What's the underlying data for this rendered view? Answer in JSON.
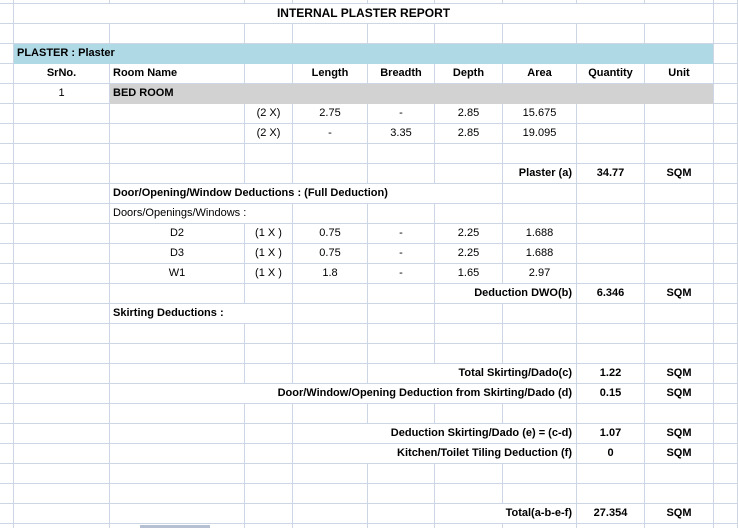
{
  "title": "INTERNAL PLASTER REPORT",
  "section_header": "PLASTER : Plaster",
  "columns": {
    "sr_no": "SrNo.",
    "room_name": "Room Name",
    "length": "Length",
    "breadth": "Breadth",
    "depth": "Depth",
    "area": "Area",
    "quantity": "Quantity",
    "unit": "Unit"
  },
  "room": {
    "sr_no": "1",
    "name": "BED ROOM"
  },
  "measure_rows": [
    {
      "mult": "(2 X)",
      "length": "2.75",
      "breadth": "-",
      "depth": "2.85",
      "area": "15.675"
    },
    {
      "mult": "(2 X)",
      "length": "-",
      "breadth": "3.35",
      "depth": "2.85",
      "area": "19.095"
    }
  ],
  "plaster_total": {
    "label": "Plaster (a)",
    "quantity": "34.77",
    "unit": "SQM"
  },
  "dwo_section": {
    "header": "Door/Opening/Window Deductions : (Full Deduction)",
    "subheader": "Doors/Openings/Windows :",
    "rows": [
      {
        "name": "D2",
        "mult": "(1 X )",
        "length": "0.75",
        "breadth": "-",
        "depth": "2.25",
        "area": "1.688"
      },
      {
        "name": "D3",
        "mult": "(1 X )",
        "length": "0.75",
        "breadth": "-",
        "depth": "2.25",
        "area": "1.688"
      },
      {
        "name": "W1",
        "mult": "(1 X )",
        "length": "1.8",
        "breadth": "-",
        "depth": "1.65",
        "area": "2.97"
      }
    ],
    "total": {
      "label": "Deduction DWO(b)",
      "quantity": "6.346",
      "unit": "SQM"
    }
  },
  "skirting_section": {
    "header": "Skirting Deductions :",
    "total_c": {
      "label": "Total Skirting/Dado(c)",
      "quantity": "1.22",
      "unit": "SQM"
    },
    "total_d": {
      "label": "Door/Window/Opening Deduction from Skirting/Dado (d)",
      "quantity": "0.15",
      "unit": "SQM"
    }
  },
  "final_deductions": {
    "row_e": {
      "label": "Deduction Skirting/Dado (e) = (c-d)",
      "quantity": "1.07",
      "unit": "SQM"
    },
    "row_f": {
      "label": "Kitchen/Toilet Tiling Deduction (f)",
      "quantity": "0",
      "unit": "SQM"
    }
  },
  "grand_total": {
    "label": "Total(a-b-e-f)",
    "quantity": "27.354",
    "unit": "SQM"
  },
  "colors": {
    "section_header_bg": "#aed9e5",
    "room_band_bg": "#d2d2d2",
    "gridline": "#ccd6e5"
  }
}
